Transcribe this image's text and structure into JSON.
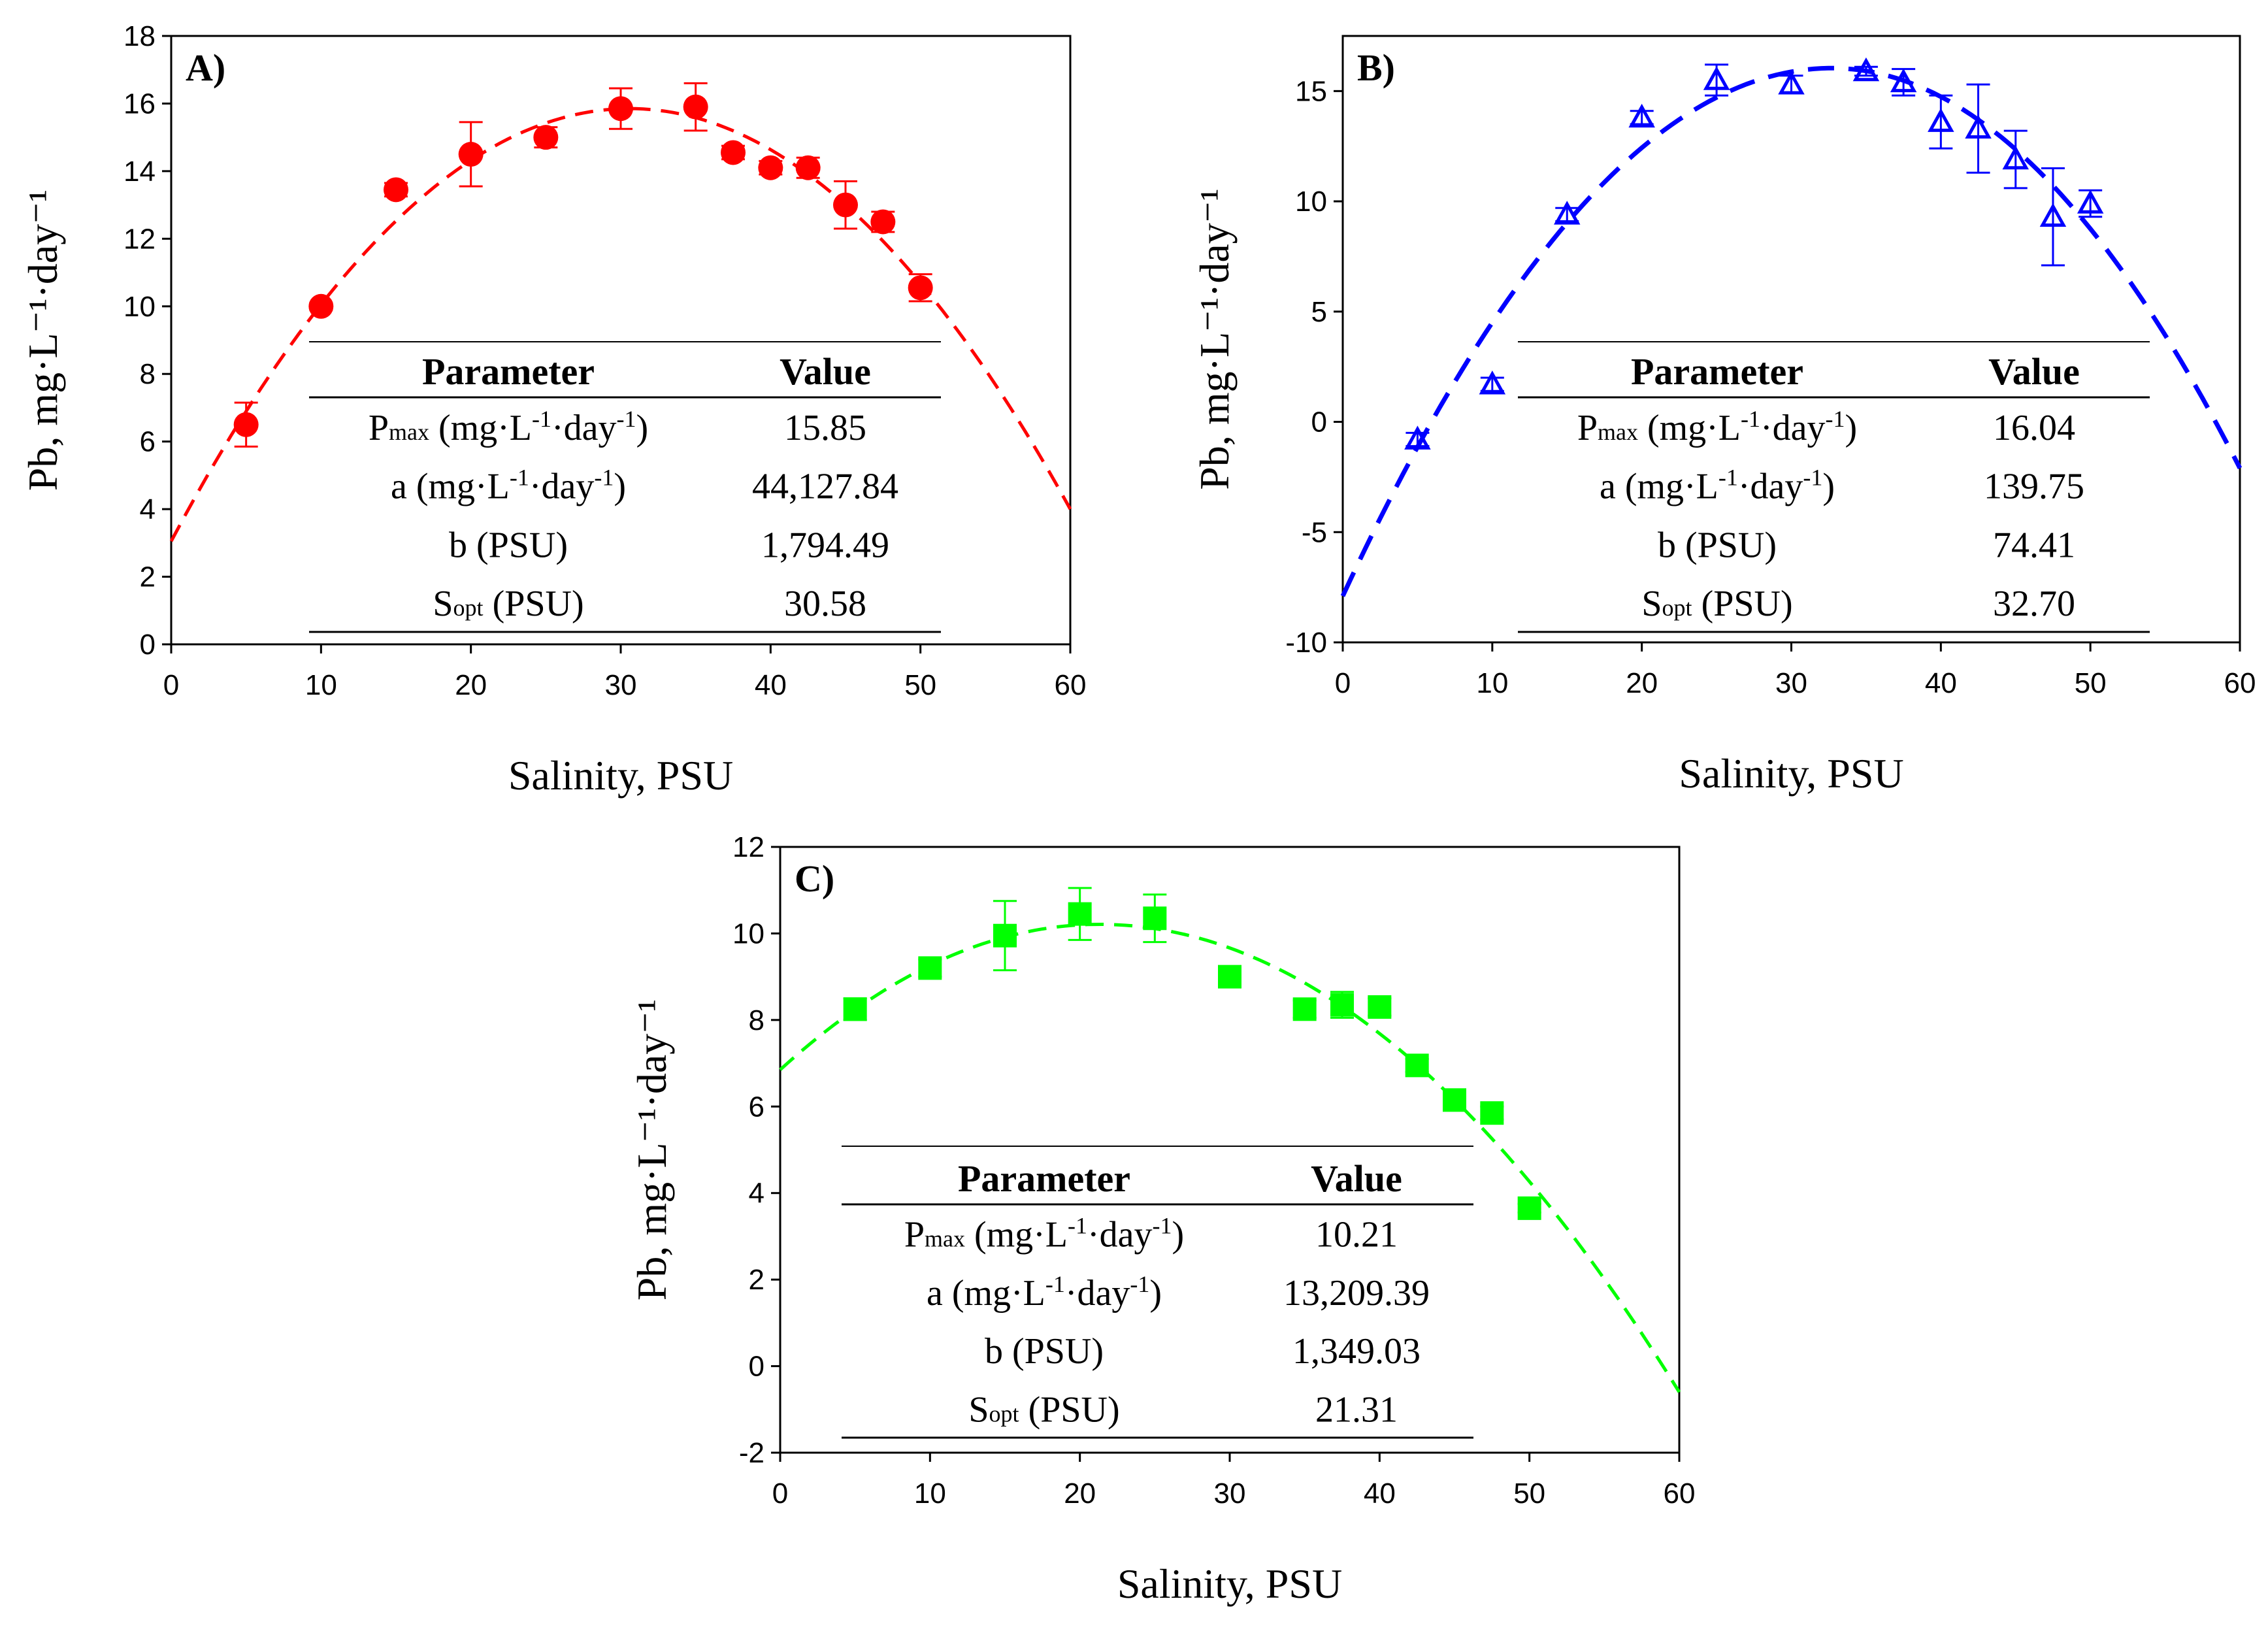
{
  "chart_data": [
    {
      "type": "scatter",
      "panel_label": "A)",
      "xlabel": "Salinity, PSU",
      "ylabel": "Pb, mg·L⁻¹·day⁻¹",
      "xlim": [
        0,
        60
      ],
      "ylim": [
        0,
        18
      ],
      "xticks": [
        0,
        10,
        20,
        30,
        40,
        50,
        60
      ],
      "yticks": [
        0,
        2,
        4,
        6,
        8,
        10,
        12,
        14,
        16,
        18
      ],
      "grid": false,
      "color": "#ff0000",
      "marker": "circle",
      "fit": "gaussian-like curve, dashed",
      "points": [
        {
          "x": 5,
          "y": 6.5,
          "err": 0.65
        },
        {
          "x": 10,
          "y": 10.0,
          "err": 0.1
        },
        {
          "x": 15,
          "y": 13.45,
          "err": 0.2
        },
        {
          "x": 20,
          "y": 14.5,
          "err": 0.95
        },
        {
          "x": 25,
          "y": 15.0,
          "err": 0.3
        },
        {
          "x": 30,
          "y": 15.85,
          "err": 0.6
        },
        {
          "x": 35,
          "y": 15.9,
          "err": 0.7
        },
        {
          "x": 37.5,
          "y": 14.55,
          "err": 0.2
        },
        {
          "x": 40,
          "y": 14.1,
          "err": 0.2
        },
        {
          "x": 42.5,
          "y": 14.1,
          "err": 0.3
        },
        {
          "x": 45,
          "y": 13.0,
          "err": 0.7
        },
        {
          "x": 47.5,
          "y": 12.5,
          "err": 0.3
        },
        {
          "x": 50,
          "y": 10.55,
          "err": 0.4
        }
      ],
      "fit_curve": {
        "Pmax": 15.85,
        "Sopt": 30.58,
        "a": 44127.84,
        "b": 1794.49
      },
      "table": {
        "header": [
          "Parameter",
          "Value"
        ],
        "rows": [
          {
            "label_main": "P",
            "label_sub": "max",
            "label_rest": " (mg·L",
            "unit_sup1": "-1",
            "unit_mid": "·day",
            "unit_sup2": "-1",
            "unit_end": ")",
            "value": "15.85"
          },
          {
            "label_main": "a",
            "label_sub": "",
            "label_rest": " (mg·L",
            "unit_sup1": "-1",
            "unit_mid": "·day",
            "unit_sup2": "-1",
            "unit_end": ")",
            "value": "44,127.84"
          },
          {
            "label_main": "b",
            "label_sub": "",
            "label_rest": " (PSU)",
            "unit_sup1": "",
            "unit_mid": "",
            "unit_sup2": "",
            "unit_end": "",
            "value": "1,794.49"
          },
          {
            "label_main": "S",
            "label_sub": "opt",
            "label_rest": " (PSU)",
            "unit_sup1": "",
            "unit_mid": "",
            "unit_sup2": "",
            "unit_end": "",
            "value": "30.58"
          }
        ]
      }
    },
    {
      "type": "scatter",
      "panel_label": "B)",
      "xlabel": "Salinity, PSU",
      "ylabel": "Pb, mg·L⁻¹·day⁻¹",
      "xlim": [
        0,
        60
      ],
      "ylim": [
        -10,
        17.5
      ],
      "xticks": [
        0,
        10,
        20,
        30,
        40,
        50,
        60
      ],
      "yticks": [
        -10,
        -5,
        0,
        5,
        10,
        15
      ],
      "grid": false,
      "color": "#0000ff",
      "marker": "triangle-open",
      "fit": "parabola, dashed",
      "points": [
        {
          "x": 5,
          "y": -0.8,
          "err": 0.3
        },
        {
          "x": 10,
          "y": 1.7,
          "err": 0.3
        },
        {
          "x": 15,
          "y": 9.4,
          "err": 0.3
        },
        {
          "x": 20,
          "y": 13.8,
          "err": 0.3
        },
        {
          "x": 25,
          "y": 15.5,
          "err": 0.7
        },
        {
          "x": 30,
          "y": 15.3,
          "err": 0.4
        },
        {
          "x": 35,
          "y": 15.9,
          "err": 0.2
        },
        {
          "x": 37.5,
          "y": 15.4,
          "err": 0.6
        },
        {
          "x": 40,
          "y": 13.6,
          "err": 1.2
        },
        {
          "x": 42.5,
          "y": 13.3,
          "err": 2.0
        },
        {
          "x": 45,
          "y": 11.9,
          "err": 1.3
        },
        {
          "x": 47.5,
          "y": 9.3,
          "err": 2.2
        },
        {
          "x": 50,
          "y": 9.9,
          "err": 0.6
        }
      ],
      "fit_curve": {
        "Pmax": 16.04,
        "Sopt": 32.7,
        "a": 139.75,
        "b": 74.41
      },
      "table": {
        "header": [
          "Parameter",
          "Value"
        ],
        "rows": [
          {
            "label_main": "P",
            "label_sub": "max",
            "label_rest": " (mg·L",
            "unit_sup1": "-1",
            "unit_mid": "·day",
            "unit_sup2": "-1",
            "unit_end": ")",
            "value": "16.04"
          },
          {
            "label_main": "a",
            "label_sub": "",
            "label_rest": " (mg·L",
            "unit_sup1": "-1",
            "unit_mid": "·day",
            "unit_sup2": "-1",
            "unit_end": ")",
            "value": "139.75"
          },
          {
            "label_main": "b",
            "label_sub": "",
            "label_rest": " (PSU)",
            "unit_sup1": "",
            "unit_mid": "",
            "unit_sup2": "",
            "unit_end": "",
            "value": "74.41"
          },
          {
            "label_main": "S",
            "label_sub": "opt",
            "label_rest": " (PSU)",
            "unit_sup1": "",
            "unit_mid": "",
            "unit_sup2": "",
            "unit_end": "",
            "value": "32.70"
          }
        ]
      }
    },
    {
      "type": "scatter",
      "panel_label": "C)",
      "xlabel": "Salinity, PSU",
      "ylabel": "Pb, mg·L⁻¹·day⁻¹",
      "xlim": [
        0,
        60
      ],
      "ylim": [
        -2,
        12
      ],
      "xticks": [
        0,
        10,
        20,
        30,
        40,
        50,
        60
      ],
      "yticks": [
        -2,
        0,
        2,
        4,
        6,
        8,
        10,
        12
      ],
      "grid": false,
      "color": "#00ff00",
      "marker": "square",
      "fit": "gaussian-like curve, dashed",
      "points": [
        {
          "x": 5,
          "y": 8.25,
          "err": 0.25
        },
        {
          "x": 10,
          "y": 9.2,
          "err": 0.2
        },
        {
          "x": 15,
          "y": 9.95,
          "err": 0.8
        },
        {
          "x": 20,
          "y": 10.45,
          "err": 0.6
        },
        {
          "x": 25,
          "y": 10.35,
          "err": 0.55
        },
        {
          "x": 30,
          "y": 9.0,
          "err": 0.2
        },
        {
          "x": 35,
          "y": 8.25,
          "err": 0.2
        },
        {
          "x": 37.5,
          "y": 8.35,
          "err": 0.3
        },
        {
          "x": 40,
          "y": 8.3,
          "err": 0.2
        },
        {
          "x": 42.5,
          "y": 6.95,
          "err": 0.15
        },
        {
          "x": 45,
          "y": 6.15,
          "err": 0.15
        },
        {
          "x": 47.5,
          "y": 5.85,
          "err": 0.15
        },
        {
          "x": 50,
          "y": 3.65,
          "err": 0.1
        }
      ],
      "fit_curve": {
        "Pmax": 10.21,
        "Sopt": 21.31,
        "a": 13209.39,
        "b": 1349.03
      },
      "table": {
        "header": [
          "Parameter",
          "Value"
        ],
        "rows": [
          {
            "label_main": "P",
            "label_sub": "max",
            "label_rest": " (mg·L",
            "unit_sup1": "-1",
            "unit_mid": "·day",
            "unit_sup2": "-1",
            "unit_end": ")",
            "value": "10.21"
          },
          {
            "label_main": "a",
            "label_sub": "",
            "label_rest": " (mg·L",
            "unit_sup1": "-1",
            "unit_mid": "·day",
            "unit_sup2": "-1",
            "unit_end": ")",
            "value": "13,209.39"
          },
          {
            "label_main": "b",
            "label_sub": "",
            "label_rest": " (PSU)",
            "unit_sup1": "",
            "unit_mid": "",
            "unit_sup2": "",
            "unit_end": "",
            "value": "1,349.03"
          },
          {
            "label_main": "S",
            "label_sub": "opt",
            "label_rest": " (PSU)",
            "unit_sup1": "",
            "unit_mid": "",
            "unit_sup2": "",
            "unit_end": "",
            "value": "21.31"
          }
        ]
      }
    }
  ]
}
